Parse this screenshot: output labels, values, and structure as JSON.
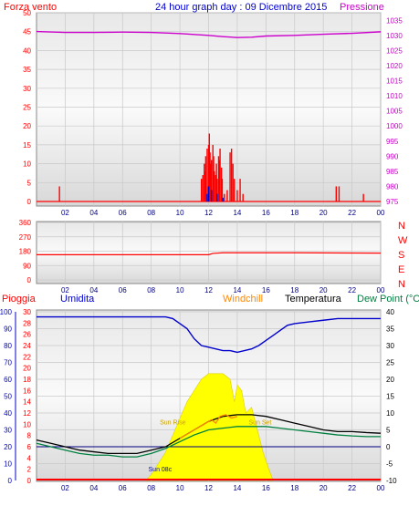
{
  "header": {
    "left": "Forza vento",
    "center": "24 hour graph day : 09 Dicembre 2015",
    "right": "Pressione"
  },
  "panel3_header": {
    "rain": "Pioggia",
    "humidity": "Umidita",
    "windchill": "Windchill",
    "temperature": "Temperatura",
    "dewpoint": "Dew Point (°C"
  },
  "colors": {
    "wind": "#ff0000",
    "pressure": "#cc00cc",
    "rain": "#ff0000",
    "humidity": "#0000cc",
    "windchill": "#ff8800",
    "temperature": "#000000",
    "dewpoint": "#008040",
    "sun": "#ffff00",
    "sun_label": "#c8a000"
  },
  "chart_data": [
    {
      "type": "bar",
      "name": "wind",
      "x_ticks": [
        "02",
        "04",
        "06",
        "08",
        "10",
        "12",
        "14",
        "16",
        "18",
        "20",
        "22",
        "00"
      ],
      "ylabel_left": "Forza vento",
      "ylabel_right": "Pressione",
      "y_left_ticks": [
        "0",
        "5",
        "10",
        "15",
        "20",
        "25",
        "30",
        "35",
        "40",
        "45",
        "50"
      ],
      "y_right_ticks": [
        "975",
        "980",
        "985",
        "990",
        "995",
        "1000",
        "1005",
        "1010",
        "1015",
        "1020",
        "1025",
        "1030",
        "1035"
      ],
      "ylim_left": [
        0,
        50
      ],
      "ylim_right": [
        975,
        1037.5
      ],
      "grid": true,
      "wind_gust": [
        [
          1.6,
          4
        ],
        [
          11.5,
          6
        ],
        [
          11.6,
          7
        ],
        [
          11.7,
          10
        ],
        [
          11.75,
          8
        ],
        [
          11.8,
          12
        ],
        [
          11.9,
          14
        ],
        [
          12.0,
          15
        ],
        [
          12.05,
          18
        ],
        [
          12.1,
          13
        ],
        [
          12.15,
          10
        ],
        [
          12.2,
          11
        ],
        [
          12.3,
          15
        ],
        [
          12.35,
          12
        ],
        [
          12.4,
          8
        ],
        [
          12.5,
          7
        ],
        [
          12.55,
          10
        ],
        [
          12.6,
          6
        ],
        [
          12.7,
          12
        ],
        [
          12.75,
          11
        ],
        [
          12.8,
          14
        ],
        [
          12.9,
          9
        ],
        [
          12.95,
          6
        ],
        [
          13.1,
          2
        ],
        [
          13.3,
          3
        ],
        [
          13.5,
          13
        ],
        [
          13.6,
          14
        ],
        [
          13.7,
          10
        ],
        [
          13.8,
          6
        ],
        [
          14.0,
          3
        ],
        [
          14.2,
          6
        ],
        [
          14.4,
          2
        ],
        [
          20.9,
          4
        ],
        [
          21.1,
          4
        ],
        [
          22.8,
          2
        ]
      ],
      "wind_avg": [
        [
          11.9,
          2
        ],
        [
          12.0,
          4
        ],
        [
          12.2,
          3
        ],
        [
          12.6,
          2
        ],
        [
          13.0,
          1
        ]
      ],
      "pressure": [
        [
          0,
          1031.3
        ],
        [
          2,
          1031.0
        ],
        [
          4,
          1031.0
        ],
        [
          6,
          1031.1
        ],
        [
          8,
          1031.0
        ],
        [
          10,
          1030.6
        ],
        [
          12,
          1030.0
        ],
        [
          13,
          1029.6
        ],
        [
          14,
          1029.3
        ],
        [
          15,
          1029.4
        ],
        [
          16,
          1029.8
        ],
        [
          18,
          1030.0
        ],
        [
          20,
          1030.4
        ],
        [
          22,
          1030.7
        ],
        [
          24,
          1031.2
        ]
      ]
    },
    {
      "type": "line",
      "name": "wind-direction",
      "x_ticks": [
        "02",
        "04",
        "06",
        "08",
        "10",
        "12",
        "14",
        "16",
        "18",
        "20",
        "22",
        "00"
      ],
      "y_ticks": [
        "0",
        "90",
        "180",
        "270",
        "360"
      ],
      "y_right_labels": [
        "N",
        "W",
        "S",
        "E",
        "N"
      ],
      "ylim": [
        0,
        360
      ],
      "grid": true,
      "direction": [
        [
          0,
          158
        ],
        [
          12,
          158
        ],
        [
          12.3,
          166
        ],
        [
          13,
          170
        ],
        [
          18,
          170
        ],
        [
          24,
          168
        ]
      ]
    },
    {
      "type": "line",
      "name": "temperature-humidity-rain",
      "x_ticks": [
        "02",
        "04",
        "06",
        "08",
        "10",
        "12",
        "14",
        "16",
        "18",
        "20",
        "22",
        "00"
      ],
      "y_left_ticks_rain": [
        "0",
        "2",
        "4",
        "6",
        "8",
        "10",
        "12",
        "14",
        "16",
        "18",
        "20",
        "22",
        "24",
        "26",
        "28",
        "30"
      ],
      "y_left_ticks_humidity": [
        "0",
        "10",
        "20",
        "30",
        "40",
        "50",
        "60",
        "70",
        "80",
        "90",
        "100"
      ],
      "y_right_ticks_temp": [
        "-10",
        "-5",
        "0",
        "5",
        "10",
        "15",
        "20",
        "25",
        "30",
        "35",
        "40"
      ],
      "ylim_rain": [
        0,
        30
      ],
      "ylim_humidity": [
        0,
        100
      ],
      "ylim_temp": [
        -10,
        40
      ],
      "grid": true,
      "sun_labels": [
        "Sun Rise",
        "Sun 08c",
        "Sun Set"
      ],
      "humidity": [
        [
          0,
          97
        ],
        [
          8,
          97
        ],
        [
          9,
          97
        ],
        [
          9.5,
          96
        ],
        [
          10,
          93
        ],
        [
          10.5,
          90
        ],
        [
          11,
          84
        ],
        [
          11.5,
          80
        ],
        [
          12,
          79
        ],
        [
          12.5,
          78
        ],
        [
          13,
          77
        ],
        [
          13.5,
          77
        ],
        [
          14,
          76
        ],
        [
          14.5,
          77
        ],
        [
          15,
          78
        ],
        [
          15.5,
          80
        ],
        [
          16,
          83
        ],
        [
          16.5,
          86
        ],
        [
          17,
          89
        ],
        [
          17.5,
          92
        ],
        [
          18,
          93
        ],
        [
          19,
          94
        ],
        [
          20,
          95
        ],
        [
          21,
          96
        ],
        [
          22,
          96
        ],
        [
          23,
          96
        ],
        [
          24,
          96
        ]
      ],
      "temperature": [
        [
          0,
          2
        ],
        [
          1,
          1
        ],
        [
          2,
          0
        ],
        [
          3,
          -1
        ],
        [
          4,
          -1.5
        ],
        [
          5,
          -2
        ],
        [
          6,
          -2
        ],
        [
          7,
          -2
        ],
        [
          8,
          -1
        ],
        [
          9,
          0
        ],
        [
          10,
          2.5
        ],
        [
          11,
          5
        ],
        [
          12,
          7.5
        ],
        [
          13,
          9
        ],
        [
          14,
          9.5
        ],
        [
          15,
          9.5
        ],
        [
          16,
          9
        ],
        [
          17,
          8
        ],
        [
          18,
          7
        ],
        [
          19,
          6
        ],
        [
          20,
          5
        ],
        [
          21,
          4.5
        ],
        [
          22,
          4.5
        ],
        [
          23,
          4.2
        ],
        [
          24,
          4
        ]
      ],
      "windchill": [
        [
          10,
          2.5
        ],
        [
          11,
          5
        ],
        [
          11.8,
          7
        ],
        [
          12.2,
          8
        ],
        [
          12.5,
          7
        ],
        [
          12.8,
          9
        ],
        [
          13.2,
          9.5
        ],
        [
          13.6,
          8.5
        ],
        [
          14,
          9
        ]
      ],
      "dewpoint": [
        [
          0,
          1
        ],
        [
          1,
          0
        ],
        [
          2,
          -1
        ],
        [
          3,
          -2
        ],
        [
          4,
          -2.5
        ],
        [
          5,
          -2.5
        ],
        [
          6,
          -3
        ],
        [
          7,
          -3
        ],
        [
          8,
          -2
        ],
        [
          9,
          -0.5
        ],
        [
          10,
          1.5
        ],
        [
          11,
          3.5
        ],
        [
          12,
          5
        ],
        [
          13,
          5.5
        ],
        [
          14,
          6
        ],
        [
          15,
          6
        ],
        [
          16,
          6
        ],
        [
          17,
          5.5
        ],
        [
          18,
          5
        ],
        [
          19,
          4.5
        ],
        [
          20,
          4
        ],
        [
          21,
          3.5
        ],
        [
          22,
          3.2
        ],
        [
          23,
          3
        ],
        [
          24,
          3
        ]
      ],
      "rain": [
        [
          0,
          0
        ],
        [
          24,
          0
        ]
      ],
      "solar": [
        [
          7.6,
          0
        ],
        [
          8,
          1
        ],
        [
          8.5,
          3
        ],
        [
          9,
          5
        ],
        [
          9.5,
          8
        ],
        [
          10,
          11
        ],
        [
          10.5,
          14
        ],
        [
          11,
          16
        ],
        [
          11.5,
          18
        ],
        [
          12,
          19
        ],
        [
          12.5,
          19
        ],
        [
          13,
          19
        ],
        [
          13.5,
          18
        ],
        [
          13.8,
          14
        ],
        [
          14,
          17
        ],
        [
          14.3,
          16
        ],
        [
          14.6,
          12
        ],
        [
          15,
          13
        ],
        [
          15.4,
          9
        ],
        [
          15.8,
          5
        ],
        [
          16.2,
          2
        ],
        [
          16.5,
          0
        ]
      ]
    }
  ]
}
